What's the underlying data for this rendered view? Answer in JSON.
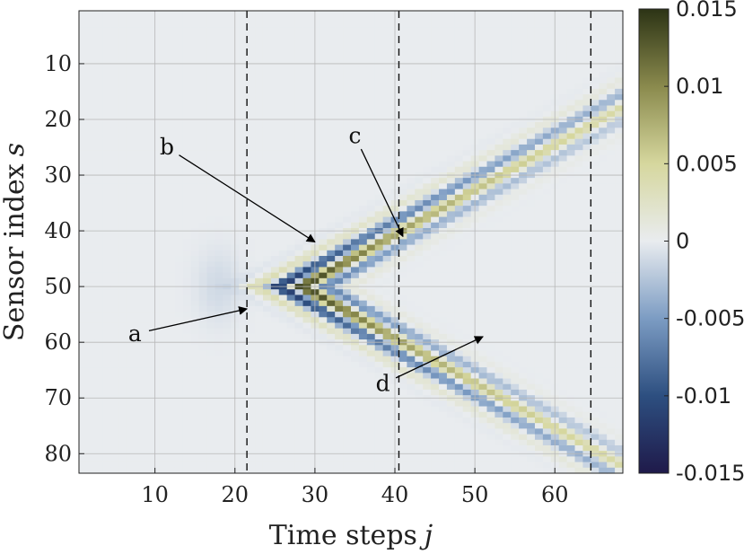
{
  "chart_data": {
    "type": "heatmap",
    "title": "",
    "xlabel": "Time steps",
    "xlabel_var": "j",
    "ylabel": "Sensor index",
    "ylabel_var": "s",
    "xlim": [
      0.5,
      68.5
    ],
    "ylim": [
      83.5,
      0.5
    ],
    "x_ticks": [
      "10",
      "20",
      "30",
      "40",
      "50",
      "60"
    ],
    "y_ticks": [
      "10",
      "20",
      "30",
      "40",
      "50",
      "60",
      "70",
      "80"
    ],
    "x_tick_values": [
      10,
      20,
      30,
      40,
      50,
      60
    ],
    "y_tick_values": [
      10,
      20,
      30,
      40,
      50,
      60,
      70,
      80
    ],
    "n_time_steps": 68,
    "n_sensors": 83,
    "grid": true,
    "colormap": "blue-white-olive diverging",
    "colorbar": {
      "min": -0.015,
      "max": 0.015,
      "tick_labels": [
        "0.015",
        "0.01",
        "0.005",
        "0",
        "-0.005",
        "-0.01",
        "-0.015"
      ],
      "tick_values": [
        0.015,
        0.01,
        0.005,
        0,
        -0.005,
        -0.01,
        -0.015
      ],
      "colors": [
        "#1f1a4a",
        "#2d4f80",
        "#7c9cc3",
        "#e9ecef",
        "#d6d79e",
        "#8a8a4d",
        "#2c3315"
      ]
    },
    "wavefront": {
      "center_sensor": 50,
      "apex_time_step": 22,
      "end_time_step": 68,
      "end_sensor_top": 13,
      "end_sensor_bottom": 84,
      "peak_amplitude": 0.015
    },
    "vertical_lines": [
      21.5,
      40.5,
      64.5
    ],
    "annotations": [
      {
        "label": "a",
        "text_x": 7.5,
        "text_y": 58.5,
        "arrow_to_x": 21.5,
        "arrow_to_y": 54
      },
      {
        "label": "b",
        "text_x": 11.5,
        "text_y": 25,
        "arrow_to_x": 30,
        "arrow_to_y": 42
      },
      {
        "label": "c",
        "text_x": 35,
        "text_y": 23,
        "arrow_to_x": 41,
        "arrow_to_y": 41
      },
      {
        "label": "d",
        "text_x": 38.5,
        "text_y": 67.5,
        "arrow_to_x": 51,
        "arrow_to_y": 59
      }
    ]
  }
}
